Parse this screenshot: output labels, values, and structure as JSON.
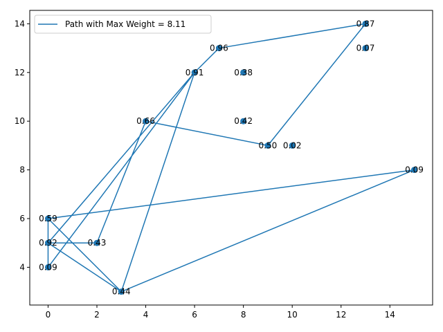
{
  "chart_data": {
    "type": "line",
    "title": "",
    "xlabel": "",
    "ylabel": "",
    "xlim": [
      -0.75,
      15.75
    ],
    "ylim": [
      2.45,
      14.55
    ],
    "x_ticks": [
      0,
      2,
      4,
      6,
      8,
      10,
      12,
      14
    ],
    "y_ticks": [
      4,
      6,
      8,
      10,
      12,
      14
    ],
    "grid": false,
    "legend_position": "top-left",
    "colors": {
      "series": "#1f77b4"
    },
    "nodes": [
      {
        "x": 0,
        "y": 4,
        "label": "0.09"
      },
      {
        "x": 0,
        "y": 5,
        "label": "0.92"
      },
      {
        "x": 0,
        "y": 6,
        "label": "0.59"
      },
      {
        "x": 2,
        "y": 5,
        "label": "0.43"
      },
      {
        "x": 3,
        "y": 3,
        "label": "0.44"
      },
      {
        "x": 4,
        "y": 10,
        "label": "0.66"
      },
      {
        "x": 6,
        "y": 12,
        "label": "0.91"
      },
      {
        "x": 7,
        "y": 13,
        "label": "0.96"
      },
      {
        "x": 8,
        "y": 12,
        "label": "0.38"
      },
      {
        "x": 8,
        "y": 10,
        "label": "0.42"
      },
      {
        "x": 9,
        "y": 9,
        "label": "0.50"
      },
      {
        "x": 10,
        "y": 9,
        "label": "0.02"
      },
      {
        "x": 13,
        "y": 14,
        "label": "0.87"
      },
      {
        "x": 13,
        "y": 13,
        "label": "0.07"
      },
      {
        "x": 15,
        "y": 8,
        "label": "0.09"
      }
    ],
    "series": [
      {
        "name": "Path with Max Weight = 8.11",
        "x": [
          9,
          13,
          7,
          6,
          0,
          0,
          6,
          3,
          0,
          0,
          2,
          4,
          9
        ],
        "y": [
          9,
          14,
          13,
          12,
          4,
          5,
          12,
          3,
          6,
          5,
          5,
          10,
          9
        ],
        "extra_segments": [
          {
            "x": [
              0,
              15,
              3,
              0
            ],
            "y": [
              6,
              8,
              3,
              5
            ]
          }
        ]
      }
    ]
  }
}
